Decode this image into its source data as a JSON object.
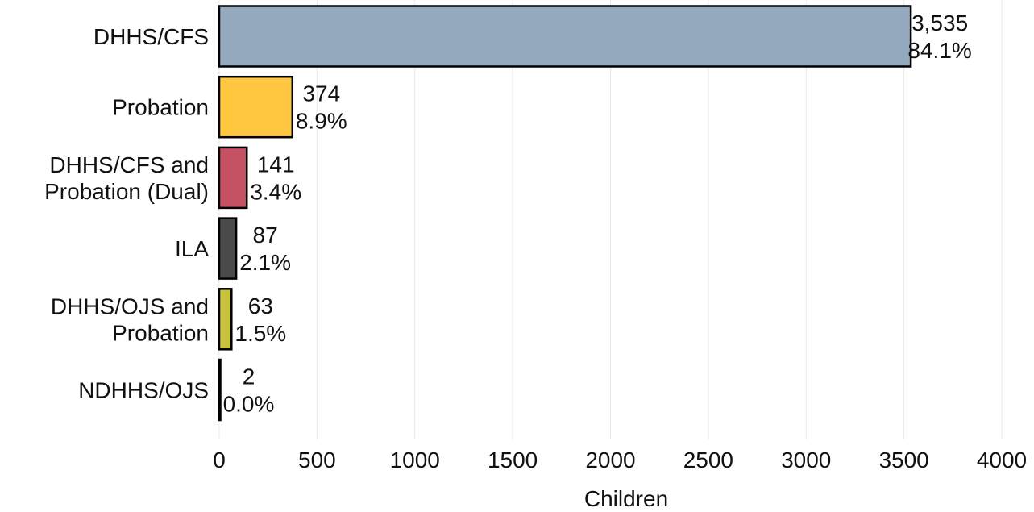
{
  "chart_data": {
    "type": "bar",
    "orientation": "horizontal",
    "xlabel": "Children",
    "ylabel": "",
    "title": "",
    "xlim": [
      0,
      4000
    ],
    "x_ticks": [
      0,
      500,
      1000,
      1500,
      2000,
      2500,
      3000,
      3500,
      4000
    ],
    "grid": "vertical gridlines on",
    "categories": [
      [
        "DHHS/CFS"
      ],
      [
        "Probation"
      ],
      [
        "DHHS/CFS and",
        "Probation (Dual)"
      ],
      [
        "ILA"
      ],
      [
        "DHHS/OJS and",
        "Probation"
      ],
      [
        "NDHHS/OJS"
      ]
    ],
    "values": [
      3535,
      374,
      141,
      87,
      63,
      2
    ],
    "value_labels": [
      "3,535",
      "374",
      "141",
      "87",
      "63",
      "2"
    ],
    "percent_labels": [
      "84.1%",
      "8.9%",
      "3.4%",
      "2.1%",
      "1.5%",
      "0.0%"
    ],
    "colors": [
      "#94A9BD",
      "#FFC640",
      "#C65163",
      "#4A4A4A",
      "#C8C23E",
      "#FFFFFF"
    ]
  }
}
